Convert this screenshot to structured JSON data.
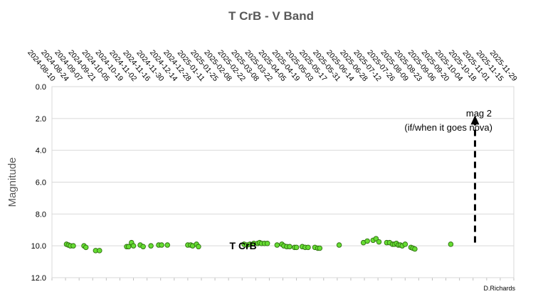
{
  "chart_data": {
    "type": "scatter",
    "title": "T CrB - V Band",
    "ylabel": "Magnitude",
    "xlabel": "",
    "ylim": [
      0,
      12
    ],
    "y_inverted": true,
    "y_ticks": [
      "0.0",
      "2.0",
      "4.0",
      "6.0",
      "8.0",
      "10.0",
      "12.0"
    ],
    "x_range": [
      "2024-08-10",
      "2025-11-29"
    ],
    "x_ticks": [
      "2024-08-10",
      "2024-08-24",
      "2024-09-07",
      "2024-09-21",
      "2024-10-05",
      "2024-10-19",
      "2024-11-02",
      "2024-11-16",
      "2024-11-30",
      "2024-12-14",
      "2024-12-28",
      "2025-01-11",
      "2025-01-25",
      "2025-02-08",
      "2025-02-22",
      "2025-03-08",
      "2025-03-22",
      "2025-04-05",
      "2025-04-19",
      "2025-05-03",
      "2025-05-17",
      "2025-05-31",
      "2025-06-14",
      "2025-06-28",
      "2025-07-12",
      "2025-07-26",
      "2025-08-09",
      "2025-08-23",
      "2025-09-06",
      "2025-09-20",
      "2025-10-04",
      "2025-10-18",
      "2025-11-01",
      "2025-11-15",
      "2025-11-29"
    ],
    "grid": "horizontal",
    "marker_color": "#66dd33",
    "marker_edge_color": "#2f6f10",
    "series_label": "T CrB",
    "points": [
      {
        "x": "2024-08-25",
        "y": 9.9
      },
      {
        "x": "2024-08-27",
        "y": 9.95
      },
      {
        "x": "2024-08-29",
        "y": 10.0
      },
      {
        "x": "2024-09-01",
        "y": 10.0
      },
      {
        "x": "2024-09-12",
        "y": 10.0
      },
      {
        "x": "2024-09-14",
        "y": 10.1
      },
      {
        "x": "2024-09-24",
        "y": 10.3
      },
      {
        "x": "2024-09-28",
        "y": 10.3
      },
      {
        "x": "2024-10-26",
        "y": 10.05
      },
      {
        "x": "2024-10-28",
        "y": 10.05
      },
      {
        "x": "2024-10-31",
        "y": 9.8
      },
      {
        "x": "2024-11-02",
        "y": 10.0
      },
      {
        "x": "2024-11-09",
        "y": 9.95
      },
      {
        "x": "2024-11-12",
        "y": 10.05
      },
      {
        "x": "2024-11-20",
        "y": 10.0
      },
      {
        "x": "2024-11-28",
        "y": 9.95
      },
      {
        "x": "2024-12-01",
        "y": 9.95
      },
      {
        "x": "2024-12-07",
        "y": 9.95
      },
      {
        "x": "2024-12-28",
        "y": 9.95
      },
      {
        "x": "2024-12-31",
        "y": 9.95
      },
      {
        "x": "2025-01-02",
        "y": 10.0
      },
      {
        "x": "2025-01-06",
        "y": 9.9
      },
      {
        "x": "2025-01-08",
        "y": 10.05
      },
      {
        "x": "2025-02-24",
        "y": 9.9
      },
      {
        "x": "2025-02-27",
        "y": 9.95
      },
      {
        "x": "2025-03-02",
        "y": 9.9
      },
      {
        "x": "2025-03-06",
        "y": 9.85
      },
      {
        "x": "2025-03-10",
        "y": 9.85
      },
      {
        "x": "2025-03-12",
        "y": 9.8
      },
      {
        "x": "2025-03-14",
        "y": 9.85
      },
      {
        "x": "2025-03-17",
        "y": 9.85
      },
      {
        "x": "2025-03-20",
        "y": 9.85
      },
      {
        "x": "2025-03-30",
        "y": 9.95
      },
      {
        "x": "2025-04-04",
        "y": 9.9
      },
      {
        "x": "2025-04-06",
        "y": 10.0
      },
      {
        "x": "2025-04-09",
        "y": 10.05
      },
      {
        "x": "2025-04-12",
        "y": 10.05
      },
      {
        "x": "2025-04-17",
        "y": 10.1
      },
      {
        "x": "2025-04-19",
        "y": 10.1
      },
      {
        "x": "2025-04-25",
        "y": 10.05
      },
      {
        "x": "2025-04-28",
        "y": 10.1
      },
      {
        "x": "2025-05-01",
        "y": 10.1
      },
      {
        "x": "2025-05-08",
        "y": 10.1
      },
      {
        "x": "2025-05-11",
        "y": 10.15
      },
      {
        "x": "2025-05-13",
        "y": 10.15
      },
      {
        "x": "2025-06-02",
        "y": 9.95
      },
      {
        "x": "2025-06-27",
        "y": 9.8
      },
      {
        "x": "2025-07-01",
        "y": 9.7
      },
      {
        "x": "2025-07-07",
        "y": 9.65
      },
      {
        "x": "2025-07-10",
        "y": 9.55
      },
      {
        "x": "2025-07-13",
        "y": 9.75
      },
      {
        "x": "2025-07-21",
        "y": 9.8
      },
      {
        "x": "2025-07-24",
        "y": 9.8
      },
      {
        "x": "2025-07-27",
        "y": 9.9
      },
      {
        "x": "2025-07-29",
        "y": 9.9
      },
      {
        "x": "2025-07-31",
        "y": 9.85
      },
      {
        "x": "2025-08-02",
        "y": 9.95
      },
      {
        "x": "2025-08-04",
        "y": 9.95
      },
      {
        "x": "2025-08-06",
        "y": 10.0
      },
      {
        "x": "2025-08-09",
        "y": 9.9
      },
      {
        "x": "2025-08-15",
        "y": 10.1
      },
      {
        "x": "2025-08-17",
        "y": 10.15
      },
      {
        "x": "2025-08-19",
        "y": 10.2
      },
      {
        "x": "2025-09-25",
        "y": 9.9
      }
    ],
    "annotation": {
      "line1": "mag 2",
      "line2": "(if/when it goes nova)",
      "arrow_x": "2025-10-20",
      "arrow_from_y": 9.8,
      "arrow_to_y": 1.8
    },
    "credit": "D.Richards"
  }
}
